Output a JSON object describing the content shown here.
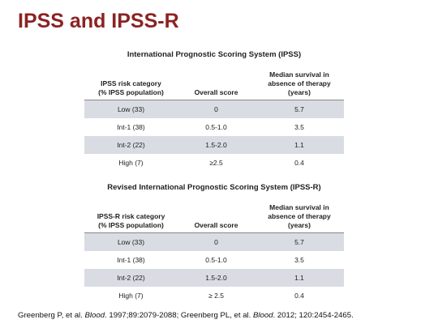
{
  "title": "IPSS and IPSS-R",
  "ipss": {
    "title": "International Prognostic Scoring System (IPSS)",
    "headers": [
      "IPSS risk category\n(% IPSS population)",
      "Overall score",
      "Median survival in\nabsence of therapy\n(years)"
    ],
    "rows": [
      [
        "Low (33)",
        "0",
        "5.7"
      ],
      [
        "Int-1 (38)",
        "0.5-1.0",
        "3.5"
      ],
      [
        "Int-2 (22)",
        "1.5-2.0",
        "1.1"
      ],
      [
        "High (7)",
        "≥2.5",
        "0.4"
      ]
    ]
  },
  "ipssr": {
    "title": "Revised International Prognostic Scoring System (IPSS-R)",
    "headers": [
      "IPSS-R risk category\n(% IPSS population)",
      "Overall score",
      "Median survival in\nabsence of therapy\n(years)"
    ],
    "rows": [
      [
        "Low (33)",
        "0",
        "5.7"
      ],
      [
        "Int-1 (38)",
        "0.5-1.0",
        "3.5"
      ],
      [
        "Int-2 (22)",
        "1.5-2.0",
        "1.1"
      ],
      [
        "High (7)",
        "≥ 2.5",
        "0.4"
      ]
    ]
  },
  "citation": {
    "part1": "Greenberg P, et al. ",
    "journal1": "Blood",
    "part2": ". 1997;89:2079-2088; Greenberg PL, et al. ",
    "journal2": "Blood",
    "part3": ". 2012; 120:2454-2465."
  },
  "colors": {
    "title": "#8b2323",
    "row_shade": "#d9dce3"
  }
}
